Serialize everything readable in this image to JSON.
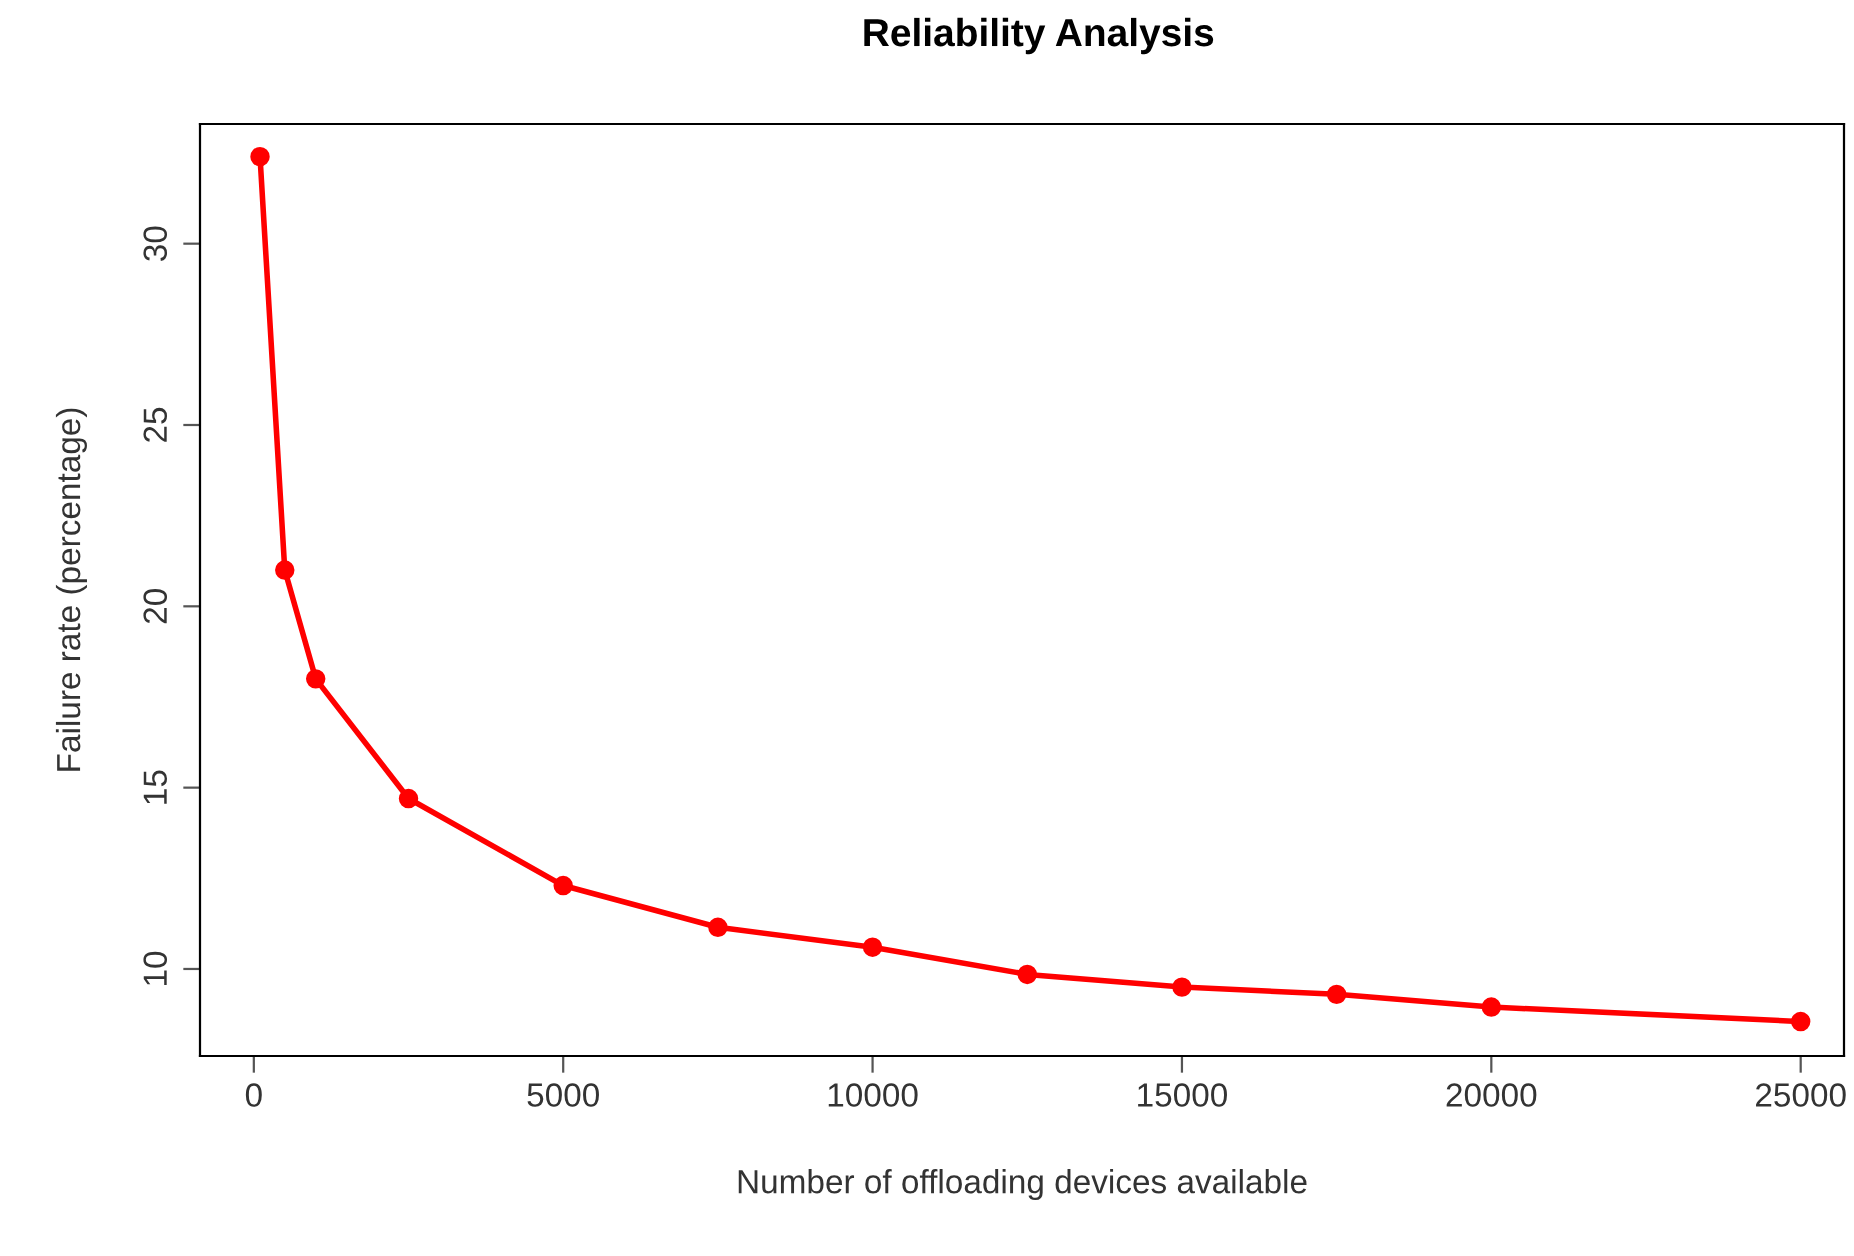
{
  "chart_data": {
    "type": "line",
    "title": "Reliability Analysis",
    "xlabel": "Number of offloading devices available",
    "ylabel": "Failure rate (percentage)",
    "x": [
      100,
      500,
      1000,
      2500,
      5000,
      7500,
      10000,
      12500,
      15000,
      17500,
      20000,
      25000
    ],
    "series": [
      {
        "color": "#ff0000",
        "values": [
          32.4,
          21.0,
          18.0,
          14.7,
          12.3,
          11.15,
          10.6,
          9.85,
          9.5,
          9.3,
          8.95,
          8.55
        ]
      }
    ],
    "xlim": [
      -870,
      25700
    ],
    "xticks": [
      0,
      5000,
      10000,
      15000,
      20000,
      25000
    ],
    "ylim": [
      7.6,
      33.3
    ],
    "yticks": [
      10,
      15,
      20,
      25,
      30
    ],
    "marker": "circle",
    "line_style": "solid",
    "grid": false,
    "legend": false
  }
}
